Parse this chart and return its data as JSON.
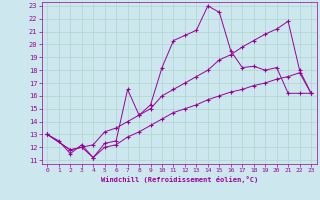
{
  "xlabel": "Windchill (Refroidissement éolien,°C)",
  "background_color": "#cce8ee",
  "grid_color": "#b0d4cc",
  "line_color": "#990099",
  "xlim": [
    -0.5,
    23.5
  ],
  "ylim": [
    10.7,
    23.3
  ],
  "xticks": [
    0,
    1,
    2,
    3,
    4,
    5,
    6,
    7,
    8,
    9,
    10,
    11,
    12,
    13,
    14,
    15,
    16,
    17,
    18,
    19,
    20,
    21,
    22,
    23
  ],
  "yticks": [
    11,
    12,
    13,
    14,
    15,
    16,
    17,
    18,
    19,
    20,
    21,
    22,
    23
  ],
  "line1_x": [
    0,
    1,
    2,
    3,
    4,
    5,
    6,
    7,
    8,
    9,
    10,
    11,
    12,
    13,
    14,
    15,
    16,
    17,
    18,
    19,
    20,
    21,
    22,
    23
  ],
  "line1_y": [
    13,
    12.5,
    11.5,
    12.2,
    11.2,
    12.3,
    12.5,
    16.5,
    14.5,
    15.3,
    18.2,
    20.3,
    20.7,
    21.1,
    23.0,
    22.5,
    19.5,
    18.2,
    18.3,
    18.0,
    18.2,
    16.2,
    16.2,
    16.2
  ],
  "line2_x": [
    0,
    2,
    3,
    4,
    5,
    6,
    7,
    8,
    9,
    10,
    11,
    12,
    13,
    14,
    15,
    16,
    17,
    18,
    19,
    20,
    21,
    22,
    23
  ],
  "line2_y": [
    13,
    11.8,
    12.0,
    12.2,
    13.2,
    13.5,
    14.0,
    14.5,
    15.0,
    16.0,
    16.5,
    17.0,
    17.5,
    18.0,
    18.8,
    19.2,
    19.8,
    20.3,
    20.8,
    21.2,
    21.8,
    18.0,
    16.2
  ],
  "line3_x": [
    0,
    2,
    3,
    4,
    5,
    6,
    7,
    8,
    9,
    10,
    11,
    12,
    13,
    14,
    15,
    16,
    17,
    18,
    19,
    20,
    21,
    22,
    23
  ],
  "line3_y": [
    13,
    11.8,
    12.0,
    11.2,
    12.0,
    12.2,
    12.8,
    13.2,
    13.7,
    14.2,
    14.7,
    15.0,
    15.3,
    15.7,
    16.0,
    16.3,
    16.5,
    16.8,
    17.0,
    17.3,
    17.5,
    17.8,
    16.2
  ]
}
